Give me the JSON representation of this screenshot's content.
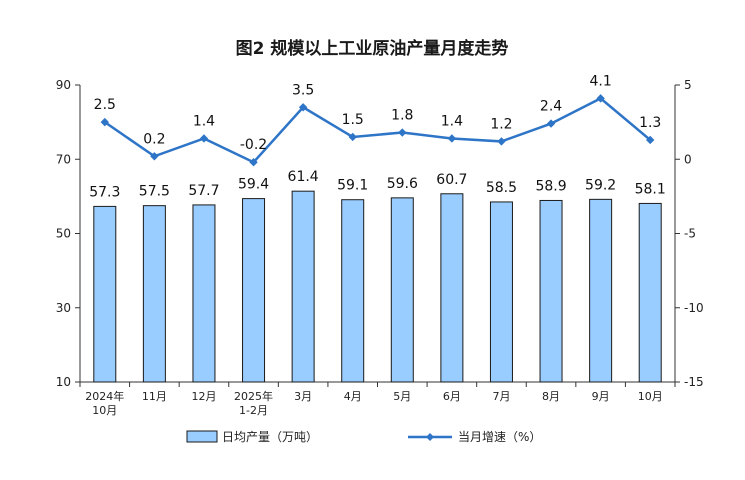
{
  "chart_data": {
    "title": "图2  规模以上工业原油产量月度走势",
    "categories": [
      [
        "2024年",
        "10月"
      ],
      [
        "11月"
      ],
      [
        "12月"
      ],
      [
        "2025年",
        "1-2月"
      ],
      [
        "3月"
      ],
      [
        "4月"
      ],
      [
        "5月"
      ],
      [
        "6月"
      ],
      [
        "7月"
      ],
      [
        "8月"
      ],
      [
        "9月"
      ],
      [
        "10月"
      ]
    ],
    "series": [
      {
        "name": "日均产量（万吨）",
        "type": "bar",
        "axis": "left",
        "color": "#99ccff",
        "values": [
          57.3,
          57.5,
          57.7,
          59.4,
          61.4,
          59.1,
          59.6,
          60.7,
          58.5,
          58.9,
          59.2,
          58.1
        ]
      },
      {
        "name": "当月增速（%）",
        "type": "line",
        "axis": "right",
        "color": "#2e75c8",
        "values": [
          2.5,
          0.2,
          1.4,
          -0.2,
          3.5,
          1.5,
          1.8,
          1.4,
          1.2,
          2.4,
          4.1,
          1.3
        ]
      }
    ],
    "y_left": {
      "min": 10,
      "max": 90,
      "ticks": [
        10,
        30,
        50,
        70,
        90
      ]
    },
    "y_right": {
      "min": -15,
      "max": 5,
      "ticks": [
        -15,
        -10,
        -5,
        0,
        5
      ]
    },
    "legend": "bottom"
  }
}
